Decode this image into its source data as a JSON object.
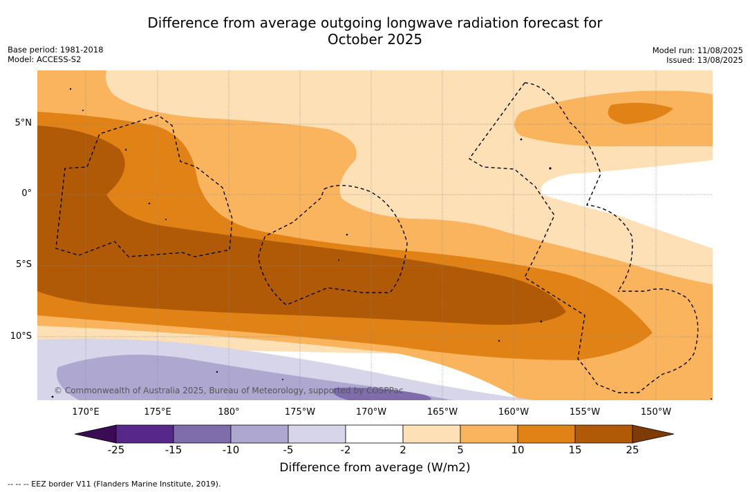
{
  "title": {
    "line1": "Difference from average outgoing longwave radiation forecast for",
    "line2": "October 2025"
  },
  "meta_left": {
    "base_period": "Base period: 1981-2018",
    "model": "Model: ACCESS-S2"
  },
  "meta_right": {
    "model_run": "Model run: 11/08/2025",
    "issued": "Issued: 13/08/2025"
  },
  "lat_labels": [
    "5°N",
    "0°",
    "5°S",
    "10°S"
  ],
  "lon_labels": [
    "170°E",
    "175°E",
    "180°",
    "175°W",
    "170°W",
    "165°W",
    "160°W",
    "155°W",
    "150°W"
  ],
  "copyright": "© Commonwealth of Australia 2025, Bureau of Meteorology, supported by COSPPac",
  "colorbar": {
    "ticks": [
      "-25",
      "-15",
      "-10",
      "-5",
      "-2",
      "2",
      "5",
      "10",
      "15",
      "25"
    ],
    "colors": [
      "#3a0c55",
      "#57288a",
      "#7e6cab",
      "#aea8d1",
      "#d6d5ea",
      "#ffffff",
      "#fde0b5",
      "#fbb45e",
      "#e08215",
      "#b05a08",
      "#7f3b06"
    ],
    "label": "Difference from average (W/m2)"
  },
  "footnote": "--  --  -- EEZ border V11 (Flanders Marine Institute, 2019)."
}
